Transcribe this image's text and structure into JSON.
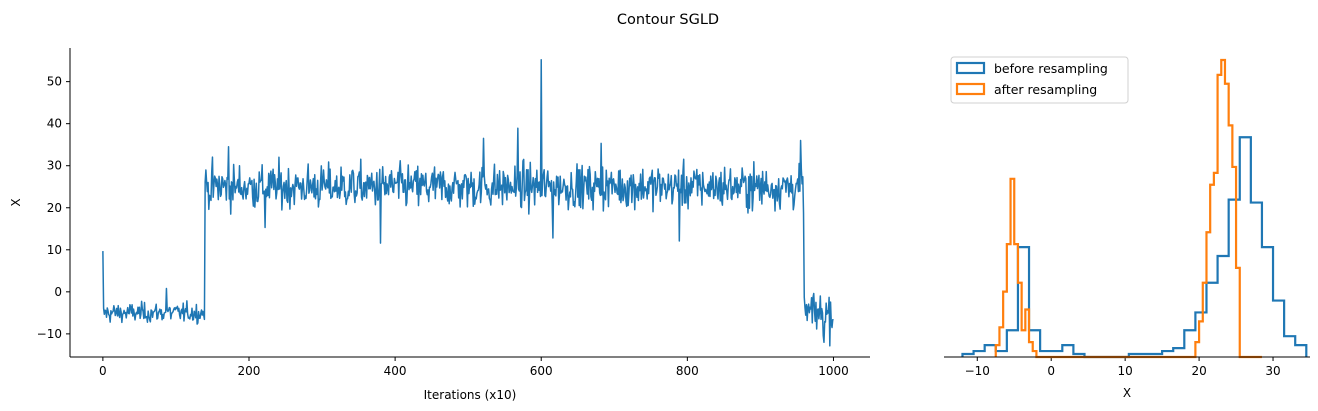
{
  "figure": {
    "title": "Contour SGLD"
  },
  "chart_data": [
    {
      "type": "line",
      "xlabel": "Iterations (x10)",
      "ylabel": "X",
      "xlim": [
        -45,
        1050
      ],
      "ylim": [
        -15.5,
        58
      ],
      "xticks": [
        0,
        200,
        400,
        600,
        800,
        1000
      ],
      "yticks": [
        -10,
        0,
        10,
        20,
        30,
        40,
        50
      ],
      "grid": false,
      "series_color": "#1f77b4",
      "phases": [
        {
          "start": 0,
          "end": 140,
          "mean": -5,
          "sd": 1.6
        },
        {
          "start": 140,
          "end": 960,
          "mean": 25,
          "sd": 3.6
        },
        {
          "start": 960,
          "end": 1000,
          "mean": -5,
          "sd": 3.5
        }
      ],
      "highlights": [
        {
          "x": 0,
          "y": 9.7
        },
        {
          "x": 87,
          "y": 0.8
        },
        {
          "x": 172,
          "y": 34.5
        },
        {
          "x": 222,
          "y": 15.3
        },
        {
          "x": 380,
          "y": 11.6
        },
        {
          "x": 521,
          "y": 36.5
        },
        {
          "x": 568,
          "y": 38.9
        },
        {
          "x": 600,
          "y": 55.2
        },
        {
          "x": 616,
          "y": 12.8
        },
        {
          "x": 682,
          "y": 35.3
        },
        {
          "x": 789,
          "y": 12.1
        },
        {
          "x": 955,
          "y": 36.0
        },
        {
          "x": 987,
          "y": -12.0
        }
      ]
    },
    {
      "type": "histogram",
      "xlabel": "X",
      "xlim": [
        -14.5,
        35
      ],
      "xticks": [
        -10,
        0,
        10,
        20,
        30
      ],
      "legend_position": "upper-left",
      "series": [
        {
          "name": "before resampling",
          "color": "#1f77b4",
          "bin_edges": [
            -12,
            -10.5,
            -9,
            -7.5,
            -6,
            -4.5,
            -3,
            -1.5,
            0,
            1.5,
            3,
            4.5,
            6,
            7.5,
            9,
            10.5,
            12,
            13.5,
            15,
            16.5,
            18,
            19.5,
            21,
            22.5,
            24,
            25.5,
            27,
            28.5,
            30,
            31.5,
            33,
            34.5
          ],
          "heights": [
            0.01,
            0.02,
            0.04,
            0.02,
            0.09,
            0.37,
            0.09,
            0.02,
            0.02,
            0.04,
            0.01,
            0.0,
            0.0,
            0.0,
            0.0,
            0.01,
            0.01,
            0.01,
            0.02,
            0.03,
            0.09,
            0.15,
            0.25,
            0.34,
            0.53,
            0.74,
            0.52,
            0.37,
            0.19,
            0.07,
            0.04
          ]
        },
        {
          "name": "after resampling",
          "color": "#ff7f0e",
          "bin_edges": [
            -7.5,
            -7,
            -6.5,
            -6,
            -5.5,
            -5,
            -4.5,
            -4,
            -3.5,
            -3,
            -2.5,
            -2,
            -1.5,
            19.5,
            20,
            20.5,
            21,
            21.5,
            22,
            22.5,
            23,
            23.5,
            24,
            24.5,
            25,
            25.5,
            26,
            26.5,
            27,
            27.5,
            28,
            28.5
          ],
          "heights": [
            0.04,
            0.1,
            0.22,
            0.38,
            0.6,
            0.38,
            0.25,
            0.09,
            0.16,
            0.05,
            0.02,
            0.0,
            0.0,
            0.05,
            0.12,
            0.25,
            0.42,
            0.58,
            0.62,
            0.95,
            1.0,
            0.92,
            0.78,
            0.64,
            0.3,
            0.0,
            0.0,
            0.0,
            0.0,
            0.0,
            0.0
          ]
        }
      ]
    }
  ]
}
